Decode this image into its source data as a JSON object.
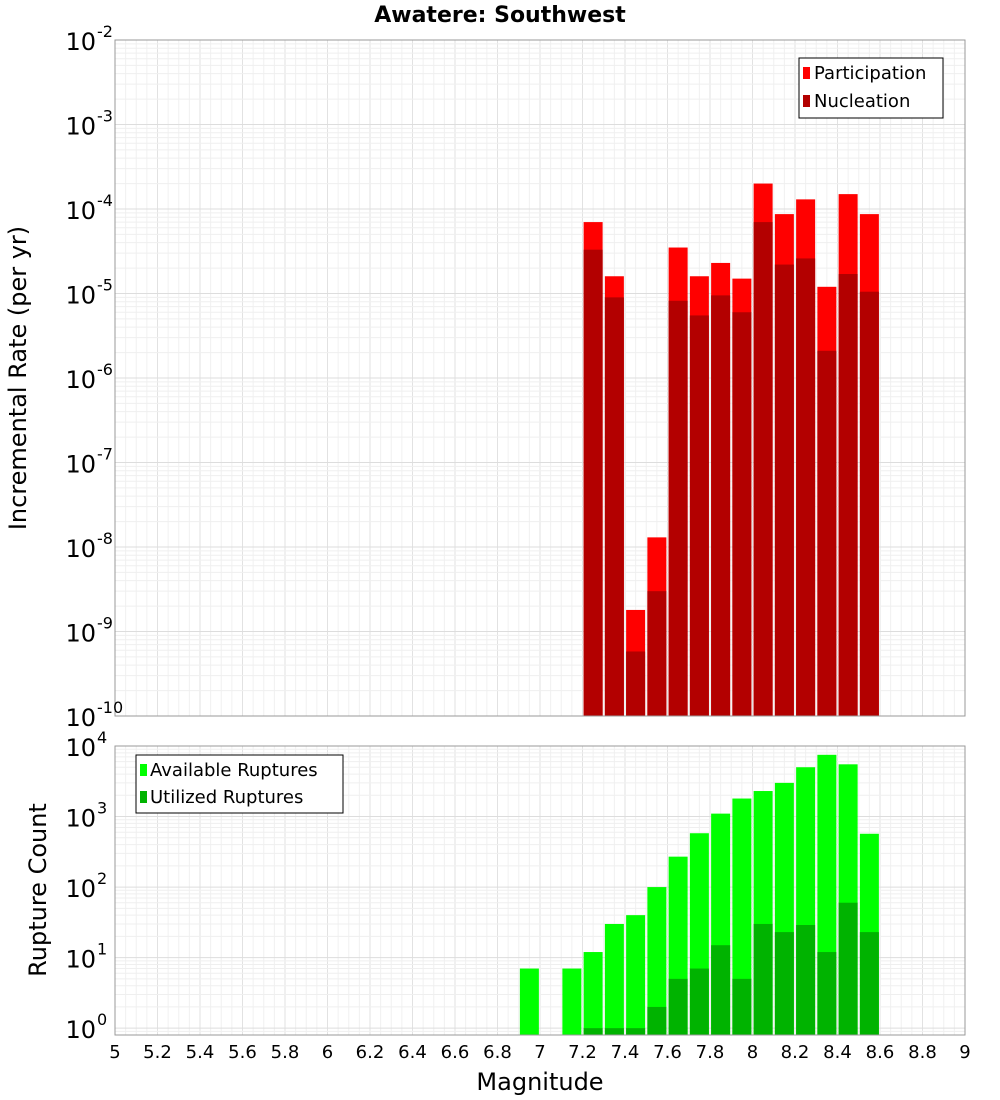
{
  "chart_data": [
    {
      "type": "bar",
      "title": "Awatere: Southwest",
      "ylabel": "Incremental Rate (per yr)",
      "xlabel": "",
      "yscale": "log",
      "ylim": [
        1e-10,
        0.01
      ],
      "xlim": [
        5,
        9
      ],
      "grid": true,
      "legend_position": "top-right",
      "x": [
        7.25,
        7.35,
        7.45,
        7.55,
        7.65,
        7.75,
        7.85,
        7.95,
        8.05,
        8.15,
        8.25,
        8.35,
        8.45,
        8.55
      ],
      "series": [
        {
          "name": "Participation",
          "color": "#ff0000",
          "values": [
            7e-05,
            1.6e-05,
            1.8e-09,
            1.3e-08,
            3.5e-05,
            1.6e-05,
            2.3e-05,
            1.5e-05,
            0.0002,
            8.7e-05,
            0.00013,
            1.2e-05,
            0.00015,
            8.7e-05
          ]
        },
        {
          "name": "Nucleation",
          "color": "#b30000",
          "values": [
            3.3e-05,
            9e-06,
            5.8e-10,
            3e-09,
            8.2e-06,
            5.5e-06,
            9.5e-06,
            6e-06,
            7e-05,
            2.2e-05,
            2.6e-05,
            2.1e-06,
            1.7e-05,
            1.05e-05
          ]
        }
      ],
      "yticks": [
        {
          "base": "10",
          "exp": "-2"
        },
        {
          "base": "10",
          "exp": "-3"
        },
        {
          "base": "10",
          "exp": "-4"
        },
        {
          "base": "10",
          "exp": "-5"
        },
        {
          "base": "10",
          "exp": "-6"
        },
        {
          "base": "10",
          "exp": "-7"
        },
        {
          "base": "10",
          "exp": "-8"
        },
        {
          "base": "10",
          "exp": "-9"
        },
        {
          "base": "10",
          "exp": "-10"
        }
      ]
    },
    {
      "type": "bar",
      "title": "",
      "ylabel": "Rupture Count",
      "xlabel": "Magnitude",
      "yscale": "log",
      "ylim": [
        0.8,
        10000
      ],
      "xlim": [
        5,
        9
      ],
      "grid": true,
      "legend_position": "top-left",
      "x": [
        6.95,
        7.05,
        7.15,
        7.25,
        7.35,
        7.45,
        7.55,
        7.65,
        7.75,
        7.85,
        7.95,
        8.05,
        8.15,
        8.25,
        8.35,
        8.45,
        8.55
      ],
      "series": [
        {
          "name": "Available Ruptures",
          "color": "#00ff00",
          "values": [
            7,
            0,
            7,
            12,
            30,
            40,
            100,
            270,
            580,
            1100,
            1800,
            2300,
            3000,
            5000,
            7500,
            5500,
            570
          ]
        },
        {
          "name": "Utilized Ruptures",
          "color": "#00b300",
          "values": [
            0,
            0,
            0,
            1,
            1,
            1,
            2,
            5,
            7,
            15,
            5,
            30,
            23,
            29,
            12,
            60,
            23
          ]
        }
      ],
      "yticks": [
        {
          "base": "10",
          "exp": "4"
        },
        {
          "base": "10",
          "exp": "3"
        },
        {
          "base": "10",
          "exp": "2"
        },
        {
          "base": "10",
          "exp": "1"
        },
        {
          "base": "10",
          "exp": "0"
        }
      ],
      "xticks": [
        "5",
        "5.2",
        "5.4",
        "5.6",
        "5.8",
        "6",
        "6.2",
        "6.4",
        "6.6",
        "6.8",
        "7",
        "7.2",
        "7.4",
        "7.6",
        "7.8",
        "8",
        "8.2",
        "8.4",
        "8.6",
        "8.8",
        "9"
      ]
    }
  ]
}
